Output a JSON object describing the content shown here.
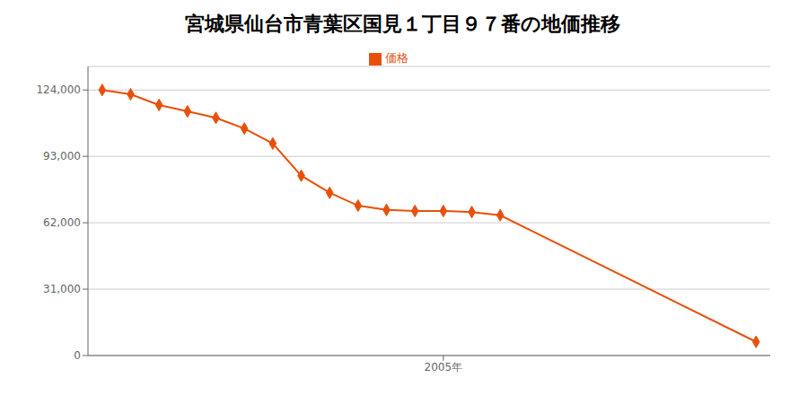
{
  "chart_data": {
    "type": "line",
    "title": "宮城県仙台市青葉区国見１丁目９７番の地価推移",
    "x": [
      1993,
      1994,
      1995,
      1996,
      1997,
      1998,
      1999,
      2000,
      2001,
      2002,
      2003,
      2004,
      2005,
      2006,
      2007,
      2016
    ],
    "series": [
      {
        "name": "価格",
        "color": "#e8500a",
        "marker": "diamond",
        "values": [
          124000,
          122000,
          117000,
          114000,
          111000,
          106000,
          99000,
          84000,
          76000,
          70000,
          68000,
          67500,
          67500,
          67000,
          65500,
          6400
        ]
      }
    ],
    "xlim": [
      1992.5,
      2016.5
    ],
    "xticks": [
      {
        "value": 2005,
        "label": "2005年"
      }
    ],
    "ylim": [
      0,
      135000
    ],
    "yticks": [
      0,
      {
        "value": 31000,
        "label": "31,000"
      },
      {
        "value": 62000,
        "label": "62,000"
      },
      {
        "value": 93000,
        "label": "93,000"
      },
      {
        "value": 124000,
        "label": "124,000"
      }
    ],
    "grid": true,
    "legend": "top"
  }
}
